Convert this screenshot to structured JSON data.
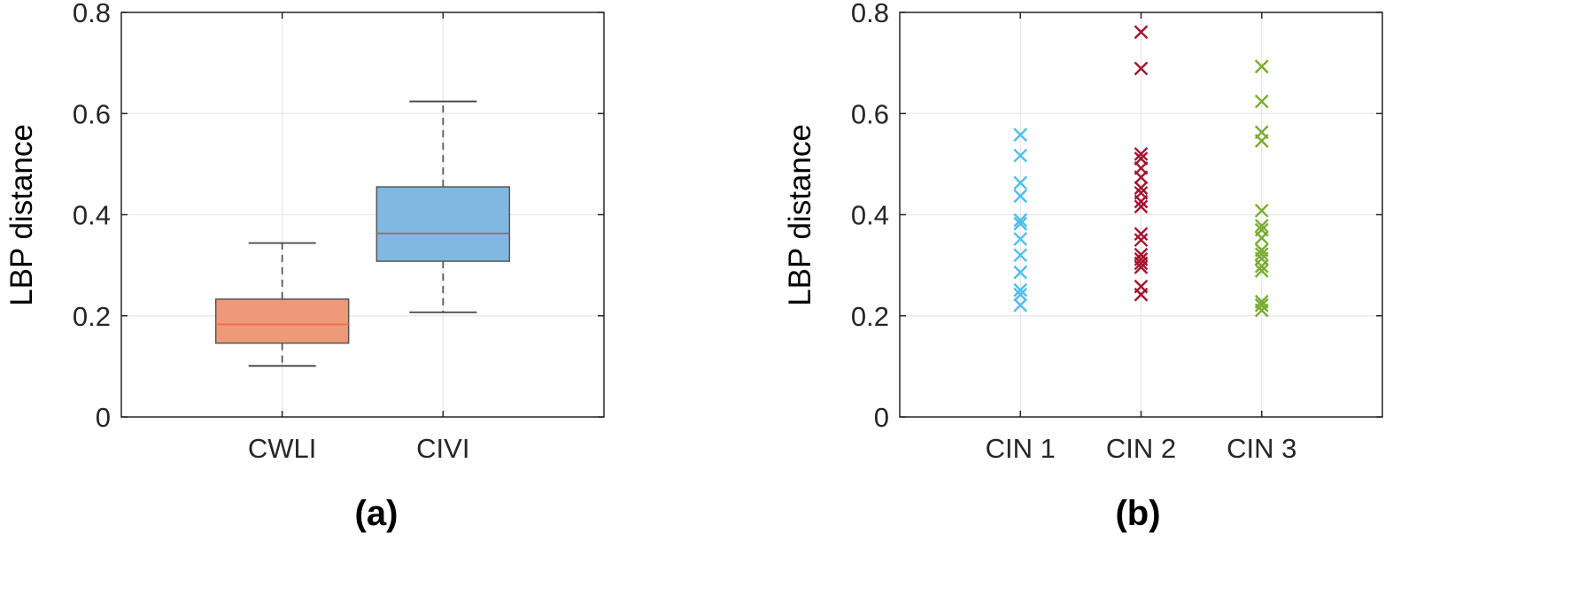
{
  "chart_data": [
    {
      "type": "box",
      "panel_label": "(a)",
      "title": "",
      "xlabel": "",
      "ylabel": "LBP distance",
      "ylim": [
        0,
        0.8
      ],
      "yticks": [
        0,
        0.2,
        0.4,
        0.6,
        0.8
      ],
      "ytick_labels": [
        "0",
        "0.2",
        "0.4",
        "0.6",
        "0.8"
      ],
      "grid": true,
      "categories": [
        "CWLI",
        "CIVI"
      ],
      "boxes": [
        {
          "name": "CWLI",
          "color": "#EE9A7A",
          "median_color": "#E8704A",
          "whisker_low": 0.101,
          "q1": 0.146,
          "median": 0.183,
          "q3": 0.233,
          "whisker_high": 0.344
        },
        {
          "name": "CIVI",
          "color": "#7FB8E0",
          "median_color": "#A0607A",
          "whisker_low": 0.207,
          "q1": 0.308,
          "median": 0.363,
          "q3": 0.455,
          "whisker_high": 0.624
        }
      ]
    },
    {
      "type": "scatter",
      "panel_label": "(b)",
      "title": "",
      "xlabel": "",
      "ylabel": "LBP distance",
      "ylim": [
        0,
        0.8
      ],
      "yticks": [
        0,
        0.2,
        0.4,
        0.6,
        0.8
      ],
      "ytick_labels": [
        "0",
        "0.2",
        "0.4",
        "0.6",
        "0.8"
      ],
      "grid": true,
      "marker": "x",
      "categories": [
        "CIN 1",
        "CIN 2",
        "CIN 3"
      ],
      "series": [
        {
          "category": "CIN 1",
          "color": "#4DBEEE",
          "values": [
            0.558,
            0.517,
            0.463,
            0.437,
            0.389,
            0.382,
            0.352,
            0.32,
            0.286,
            0.251,
            0.242,
            0.221
          ]
        },
        {
          "category": "CIN 2",
          "color": "#A2142F",
          "values": [
            0.761,
            0.689,
            0.52,
            0.511,
            0.492,
            0.474,
            0.453,
            0.443,
            0.426,
            0.416,
            0.362,
            0.35,
            0.321,
            0.312,
            0.304,
            0.296,
            0.258,
            0.242
          ]
        },
        {
          "category": "CIN 3",
          "color": "#77AC30",
          "values": [
            0.693,
            0.624,
            0.563,
            0.546,
            0.408,
            0.378,
            0.37,
            0.354,
            0.33,
            0.322,
            0.313,
            0.298,
            0.289,
            0.228,
            0.221,
            0.211
          ]
        }
      ]
    }
  ]
}
